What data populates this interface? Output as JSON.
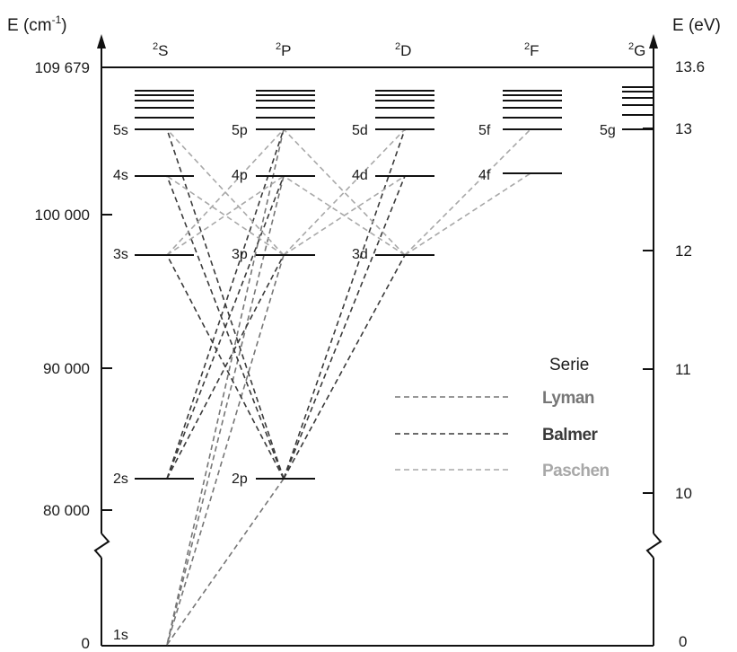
{
  "axes": {
    "left_title": "E (cm",
    "left_title_sup": "-1",
    "left_title_close": ")",
    "right_title": "E (eV)",
    "left_ticks": [
      "109 679",
      "100 000",
      "90 000",
      "80 000",
      "0"
    ],
    "right_ticks": [
      "13.6",
      "13",
      "12",
      "11",
      "10",
      "0"
    ]
  },
  "columns": [
    {
      "sup": "2",
      "label": "S"
    },
    {
      "sup": "2",
      "label": "P"
    },
    {
      "sup": "2",
      "label": "D"
    },
    {
      "sup": "2",
      "label": "F"
    },
    {
      "sup": "2",
      "label": "G"
    }
  ],
  "levels": {
    "s": [
      "1s",
      "2s",
      "3s",
      "4s",
      "5s"
    ],
    "p": [
      "2p",
      "3p",
      "4p",
      "5p"
    ],
    "d": [
      "3d",
      "4d",
      "5d"
    ],
    "f": [
      "4f",
      "5f"
    ],
    "g": [
      "5g"
    ]
  },
  "legend": {
    "title": "Serie",
    "series": [
      {
        "name": "Lyman",
        "color": "#767676"
      },
      {
        "name": "Balmer",
        "color": "#3a3a3a"
      },
      {
        "name": "Paschen",
        "color": "#a8a8a8"
      }
    ]
  },
  "colors": {
    "lyman": "#767676",
    "balmer": "#3a3a3a",
    "paschen": "#a8a8a8",
    "axis": "#111111"
  }
}
